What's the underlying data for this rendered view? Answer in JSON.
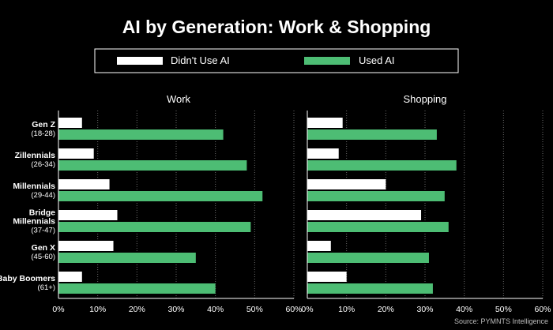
{
  "chart_data": {
    "type": "bar",
    "orientation": "horizontal",
    "title": "AI by Generation: Work & Shopping",
    "legend": [
      {
        "label": "Didn't Use AI",
        "color": "#ffffff"
      },
      {
        "label": "Used AI",
        "color": "#4dbd74"
      }
    ],
    "legend_position": "top",
    "categories": [
      {
        "name": "Gen Z",
        "age": "(18-28)"
      },
      {
        "name": "Zillennials",
        "age": "(26-34)"
      },
      {
        "name": "Millennials",
        "age": "(29-44)"
      },
      {
        "name": "Bridge Millennials",
        "age": "(37-47)"
      },
      {
        "name": "Gen X",
        "age": "(45-60)"
      },
      {
        "name": "Baby Boomers",
        "age": "(61+)"
      }
    ],
    "xlim": [
      0,
      60
    ],
    "ticks": [
      "0%",
      "10%",
      "20%",
      "30%",
      "40%",
      "50%",
      "60%"
    ],
    "grid": "dotted vertical",
    "panels": [
      {
        "title": "Work",
        "series": [
          {
            "name": "Didn't Use AI",
            "values": [
              6,
              9,
              13,
              15,
              14,
              6
            ]
          },
          {
            "name": "Used AI",
            "values": [
              42,
              48,
              52,
              49,
              35,
              40
            ]
          }
        ]
      },
      {
        "title": "Shopping",
        "series": [
          {
            "name": "Didn't Use AI",
            "values": [
              9,
              8,
              20,
              29,
              6,
              10
            ]
          },
          {
            "name": "Used AI",
            "values": [
              33,
              38,
              35,
              36,
              31,
              32
            ]
          }
        ]
      }
    ],
    "source": "Source: PYMNTS Intelligence"
  }
}
